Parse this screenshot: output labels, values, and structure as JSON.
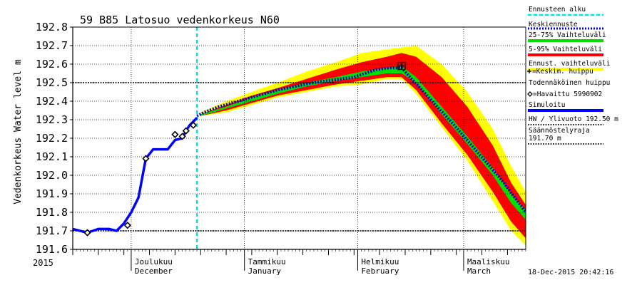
{
  "chart_data": {
    "type": "line",
    "title": "59 B85 Latosuo vedenkorkeus N60",
    "ylabel": "Vedenkorkeus Water level m",
    "xlabel": "",
    "year_label": "2015",
    "timestamp": "18-Dec-2015 20:42:16",
    "ylim": [
      191.6,
      192.8
    ],
    "xlim": [
      "2015-11-15",
      "2016-03-18"
    ],
    "grid": true,
    "legend_position": "right",
    "y_ticks": [
      "191.6",
      "191.7",
      "191.8",
      "191.9",
      "192.0",
      "192.1",
      "192.2",
      "192.3",
      "192.4",
      "192.5",
      "192.6",
      "192.7",
      "192.8"
    ],
    "month_labels": [
      {
        "date": "2015-12-01",
        "fi": "Joulukuu",
        "en": "December"
      },
      {
        "date": "2016-01-01",
        "fi": "Tammikuu",
        "en": "January"
      },
      {
        "date": "2016-02-01",
        "fi": "Helmikuu",
        "en": "February"
      },
      {
        "date": "2016-03-01",
        "fi": "Maaliskuu",
        "en": "March"
      }
    ],
    "reference_lines": [
      {
        "name": "HW / Ylivuoto 192.50 m",
        "y": 192.5
      },
      {
        "name": "Säännöstelyraja 191.70 m",
        "y": 191.7
      }
    ],
    "forecast_start": "2015-12-19",
    "colors": {
      "observed": "#0000ff",
      "forecast_mean": "#0000cc",
      "band_25_75": "#00e000",
      "band_5_95": "#ff0000",
      "band_outer": "#ffff00",
      "forecast_start": "#00e0e0",
      "reference": "#000000"
    },
    "series": [
      {
        "name": "Simuloitu",
        "kind": "observed_simulated",
        "x": [
          "2015-11-15",
          "2015-11-19",
          "2015-11-22",
          "2015-11-25",
          "2015-11-27",
          "2015-11-29",
          "2015-12-01",
          "2015-12-03",
          "2015-12-05",
          "2015-12-07",
          "2015-12-09",
          "2015-12-11",
          "2015-12-13",
          "2015-12-15",
          "2015-12-16",
          "2015-12-17",
          "2015-12-18",
          "2015-12-19"
        ],
        "y": [
          191.71,
          191.69,
          191.71,
          191.71,
          191.7,
          191.74,
          191.8,
          191.88,
          192.09,
          192.14,
          192.14,
          192.14,
          192.19,
          192.2,
          192.24,
          192.27,
          192.29,
          192.31
        ]
      },
      {
        "name": "Keskiennuste",
        "kind": "forecast_mean",
        "x": [
          "2015-12-19",
          "2015-12-21",
          "2015-12-25",
          "2016-01-01",
          "2016-01-10",
          "2016-01-20",
          "2016-01-31",
          "2016-02-06",
          "2016-02-10",
          "2016-02-13",
          "2016-02-20",
          "2016-02-27",
          "2016-03-05",
          "2016-03-12",
          "2016-03-18"
        ],
        "y": [
          192.32,
          192.34,
          192.37,
          192.41,
          192.46,
          192.5,
          192.53,
          192.57,
          192.58,
          192.58,
          192.43,
          192.28,
          192.12,
          191.96,
          191.8
        ]
      }
    ],
    "bands": [
      {
        "name": "Ennust. vaihteluväli",
        "x": [
          "2015-12-20",
          "2015-12-27",
          "2016-01-03",
          "2016-01-10",
          "2016-01-18",
          "2016-01-26",
          "2016-02-02",
          "2016-02-09",
          "2016-02-13",
          "2016-02-17",
          "2016-02-24",
          "2016-03-02",
          "2016-03-09",
          "2016-03-14",
          "2016-03-18"
        ],
        "lower": [
          192.32,
          192.34,
          192.38,
          192.42,
          192.45,
          192.48,
          192.49,
          192.52,
          192.52,
          192.44,
          192.26,
          192.08,
          191.86,
          191.7,
          191.62
        ],
        "upper": [
          192.34,
          192.4,
          192.45,
          192.5,
          192.56,
          192.61,
          192.66,
          192.68,
          192.69,
          192.7,
          192.6,
          192.45,
          192.25,
          192.05,
          191.91
        ]
      },
      {
        "name": "5-95% Vaihteluväli",
        "x": [
          "2015-12-20",
          "2015-12-27",
          "2016-01-03",
          "2016-01-10",
          "2016-01-18",
          "2016-01-26",
          "2016-02-02",
          "2016-02-09",
          "2016-02-13",
          "2016-02-17",
          "2016-02-24",
          "2016-03-02",
          "2016-03-09",
          "2016-03-14",
          "2016-03-18"
        ],
        "lower": [
          192.32,
          192.35,
          192.39,
          192.43,
          192.46,
          192.49,
          192.51,
          192.53,
          192.53,
          192.46,
          192.28,
          192.11,
          191.91,
          191.75,
          191.66
        ],
        "upper": [
          192.33,
          192.38,
          192.43,
          192.47,
          192.52,
          192.57,
          192.61,
          192.64,
          192.66,
          192.64,
          192.53,
          192.37,
          192.16,
          191.96,
          191.84
        ]
      },
      {
        "name": "25-75% Vaihteluväli",
        "x": [
          "2015-12-20",
          "2015-12-27",
          "2016-01-03",
          "2016-01-10",
          "2016-01-18",
          "2016-01-26",
          "2016-02-02",
          "2016-02-09",
          "2016-02-13",
          "2016-02-17",
          "2016-02-24",
          "2016-03-02",
          "2016-03-09",
          "2016-03-14",
          "2016-03-18"
        ],
        "lower": [
          192.32,
          192.36,
          192.4,
          192.44,
          192.48,
          192.51,
          192.53,
          192.55,
          192.55,
          192.5,
          192.33,
          192.17,
          192.0,
          191.85,
          191.76
        ],
        "upper": [
          192.33,
          192.37,
          192.42,
          192.46,
          192.5,
          192.53,
          192.56,
          192.58,
          192.59,
          192.53,
          192.37,
          192.21,
          192.04,
          191.9,
          191.81
        ]
      }
    ],
    "observations": {
      "name": "=Havaittu 5990902",
      "x": [
        "2015-11-19",
        "2015-11-30",
        "2015-12-05",
        "2015-12-13",
        "2015-12-15",
        "2015-12-16",
        "2015-12-18"
      ],
      "y": [
        191.69,
        191.73,
        192.09,
        192.22,
        192.21,
        192.24,
        192.27
      ]
    },
    "peak_mean": {
      "name": "=Keskim. huippu",
      "x": "2016-02-13",
      "y": 192.59
    },
    "peak_probable": {
      "name": "Todennäköinen huippu",
      "x": "2016-02-13",
      "y": 192.59
    },
    "legend": [
      {
        "label": "Ennusteen alku",
        "style": "dash-cyan"
      },
      {
        "label": "Keskiennuste",
        "style": "dot-blue"
      },
      {
        "label": "25-75% Vaihteluväli",
        "style": "green"
      },
      {
        "label": "5-95% Vaihteluväli",
        "style": "red"
      },
      {
        "label": "Ennust. vaihteluväli",
        "style": "yellow"
      },
      {
        "label": "=Keskim. huippu",
        "style": "cross"
      },
      {
        "label": "Todennäköinen huippu",
        "style": "none"
      },
      {
        "label": "=Havaittu 5990902",
        "style": "diamond"
      },
      {
        "label": "Simuloitu",
        "style": "blue"
      },
      {
        "label": "HW / Ylivuoto 192.50 m",
        "style": "dot-black"
      },
      {
        "label": "Säännöstelyraja",
        "style": "none"
      },
      {
        "label": "191.70 m",
        "style": "dot-black"
      }
    ]
  }
}
